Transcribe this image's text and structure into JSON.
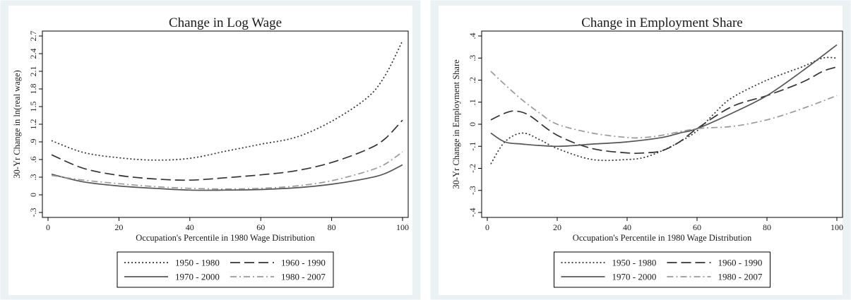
{
  "chart_data": [
    {
      "type": "line",
      "title": "Change in Log Wage",
      "xlabel": "Occupation's Percentile in 1980 Wage Distribution",
      "ylabel": "30-Yr Change in ln(real wage)",
      "xlim": [
        0,
        100
      ],
      "ylim": [
        -0.3,
        2.7
      ],
      "xticks": [
        0,
        20,
        40,
        60,
        80,
        100
      ],
      "xtick_labels": [
        "0",
        "20",
        "40",
        "60",
        "80",
        "100"
      ],
      "yticks": [
        -0.3,
        0,
        0.3,
        0.6,
        0.9,
        1.2,
        1.5,
        1.8,
        2.1,
        2.4,
        2.7
      ],
      "ytick_labels": [
        "-.3",
        "0",
        ".3",
        ".6",
        ".9",
        "1.2",
        "1.5",
        "1.8",
        "2.1",
        "2.4",
        "2.7"
      ],
      "grid": false,
      "legend_position": "bottom",
      "series": [
        {
          "name": "1950 - 1980",
          "dash": "2,3",
          "color": "#333333",
          "x": [
            1,
            10,
            20,
            30,
            40,
            50,
            60,
            70,
            80,
            90,
            95,
            100
          ],
          "y": [
            0.92,
            0.72,
            0.63,
            0.59,
            0.62,
            0.74,
            0.86,
            0.98,
            1.25,
            1.65,
            2.02,
            2.62
          ]
        },
        {
          "name": "1960 - 1990",
          "dash": "14,6",
          "color": "#333333",
          "x": [
            1,
            10,
            20,
            30,
            40,
            50,
            60,
            70,
            80,
            90,
            95,
            100
          ],
          "y": [
            0.68,
            0.45,
            0.33,
            0.27,
            0.25,
            0.29,
            0.34,
            0.41,
            0.55,
            0.77,
            0.95,
            1.27
          ]
        },
        {
          "name": "1970 - 2000",
          "dash": "",
          "color": "#555555",
          "x": [
            1,
            10,
            20,
            30,
            40,
            50,
            60,
            70,
            80,
            90,
            95,
            100
          ],
          "y": [
            0.35,
            0.22,
            0.15,
            0.11,
            0.08,
            0.08,
            0.09,
            0.12,
            0.18,
            0.28,
            0.36,
            0.51
          ]
        },
        {
          "name": "1980 - 2007",
          "dash": "9,4,2,4",
          "color": "#9a9a9a",
          "x": [
            1,
            10,
            20,
            30,
            40,
            50,
            60,
            70,
            80,
            90,
            95,
            100
          ],
          "y": [
            0.33,
            0.25,
            0.19,
            0.14,
            0.11,
            0.1,
            0.11,
            0.15,
            0.24,
            0.4,
            0.52,
            0.73
          ]
        }
      ]
    },
    {
      "type": "line",
      "title": "Change in Employment Share",
      "xlabel": "Occupation's Percentile in 1980 Wage Distribution",
      "ylabel": "30-Yr Change in Employment Share",
      "xlim": [
        0,
        100
      ],
      "ylim": [
        -0.4,
        0.4
      ],
      "xticks": [
        0,
        20,
        40,
        60,
        80,
        100
      ],
      "xtick_labels": [
        "0",
        "20",
        "40",
        "60",
        "80",
        "100"
      ],
      "yticks": [
        -0.4,
        -0.3,
        -0.2,
        -0.1,
        0,
        0.1,
        0.2,
        0.3,
        0.4
      ],
      "ytick_labels": [
        "-.4",
        "-.3",
        "-.2",
        "-.1",
        "0",
        ".1",
        ".2",
        ".3",
        ".4"
      ],
      "grid": false,
      "legend_position": "bottom",
      "series": [
        {
          "name": "1950 - 1980",
          "dash": "2,3",
          "color": "#333333",
          "x": [
            1,
            5,
            10,
            15,
            20,
            30,
            40,
            45,
            50,
            55,
            60,
            65,
            70,
            80,
            90,
            96,
            100
          ],
          "y": [
            -0.18,
            -0.08,
            -0.04,
            -0.07,
            -0.11,
            -0.16,
            -0.16,
            -0.15,
            -0.12,
            -0.08,
            -0.03,
            0.05,
            0.12,
            0.2,
            0.26,
            0.3,
            0.3
          ]
        },
        {
          "name": "1960 - 1990",
          "dash": "14,6",
          "color": "#333333",
          "x": [
            1,
            5,
            8,
            12,
            20,
            30,
            40,
            45,
            50,
            55,
            60,
            70,
            80,
            90,
            96,
            100
          ],
          "y": [
            0.02,
            0.05,
            0.06,
            0.04,
            -0.05,
            -0.11,
            -0.13,
            -0.13,
            -0.12,
            -0.08,
            -0.02,
            0.08,
            0.13,
            0.19,
            0.24,
            0.26
          ]
        },
        {
          "name": "1970 - 2000",
          "dash": "",
          "color": "#555555",
          "x": [
            1,
            5,
            10,
            20,
            30,
            40,
            50,
            55,
            60,
            70,
            80,
            90,
            100
          ],
          "y": [
            -0.04,
            -0.08,
            -0.09,
            -0.1,
            -0.09,
            -0.08,
            -0.06,
            -0.04,
            -0.02,
            0.05,
            0.13,
            0.24,
            0.36
          ]
        },
        {
          "name": "1980 - 2007",
          "dash": "9,4,2,4",
          "color": "#9a9a9a",
          "x": [
            1,
            5,
            10,
            15,
            20,
            30,
            40,
            45,
            50,
            60,
            70,
            80,
            90,
            100
          ],
          "y": [
            0.24,
            0.18,
            0.11,
            0.05,
            0.0,
            -0.04,
            -0.06,
            -0.06,
            -0.05,
            -0.02,
            -0.01,
            0.02,
            0.07,
            0.13
          ]
        }
      ]
    }
  ]
}
